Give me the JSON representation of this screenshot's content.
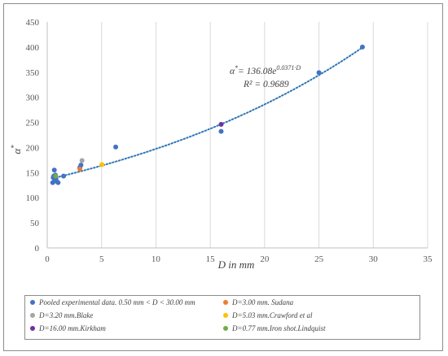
{
  "chart_data": {
    "type": "scatter",
    "xlabel": "D in mm",
    "ylabel": "α*",
    "xlim": [
      0,
      35
    ],
    "ylim": [
      0,
      450
    ],
    "xticks": [
      0,
      5,
      10,
      15,
      20,
      25,
      30,
      35
    ],
    "yticks": [
      0,
      50,
      100,
      150,
      200,
      250,
      300,
      350,
      400,
      450
    ],
    "grid": "vertical",
    "legend_placement": "bottom",
    "series": [
      {
        "name": "Pooled experimental data. 0.50 mm < D < 30.00 mm",
        "color": "#4472c4",
        "points": [
          {
            "x": 0.5,
            "y": 130
          },
          {
            "x": 0.55,
            "y": 140
          },
          {
            "x": 0.6,
            "y": 143
          },
          {
            "x": 0.65,
            "y": 155
          },
          {
            "x": 0.7,
            "y": 135
          },
          {
            "x": 0.75,
            "y": 145
          },
          {
            "x": 0.8,
            "y": 138
          },
          {
            "x": 0.85,
            "y": 133
          },
          {
            "x": 1.0,
            "y": 130
          },
          {
            "x": 1.5,
            "y": 143
          },
          {
            "x": 3.0,
            "y": 160
          },
          {
            "x": 3.1,
            "y": 165
          },
          {
            "x": 6.3,
            "y": 201
          },
          {
            "x": 16.0,
            "y": 232
          },
          {
            "x": 25.0,
            "y": 349
          },
          {
            "x": 29.0,
            "y": 400
          }
        ]
      },
      {
        "name": "D=3.00 mm. Sudana",
        "color": "#ed7d31",
        "points": [
          {
            "x": 3.0,
            "y": 157
          }
        ]
      },
      {
        "name": "D=3.20 mm.Blake",
        "color": "#a5a5a5",
        "points": [
          {
            "x": 3.2,
            "y": 174
          }
        ]
      },
      {
        "name": "D=5.03 mm.Crawford et al",
        "color": "#ffc000",
        "points": [
          {
            "x": 5.03,
            "y": 166
          }
        ]
      },
      {
        "name": "D=16.00 mm.Kirkham",
        "color": "#7030a0",
        "points": [
          {
            "x": 16.0,
            "y": 246
          }
        ]
      },
      {
        "name": "D=0.77 mm.Iron shot.Lindquist",
        "color": "#70ad47",
        "points": [
          {
            "x": 0.77,
            "y": 143
          }
        ]
      }
    ],
    "trendline": {
      "type": "exponential",
      "a": 136.08,
      "b": 0.0371,
      "x_range": [
        0.5,
        29
      ],
      "color": "#2e75b6",
      "style": "dotted"
    },
    "annotations": {
      "equation_lhs": "α",
      "equation_sup1": "*",
      "equation_eq": "= 136.08e",
      "equation_sup2": "0.0371·D",
      "r_squared": "R² = 0.9689"
    }
  }
}
